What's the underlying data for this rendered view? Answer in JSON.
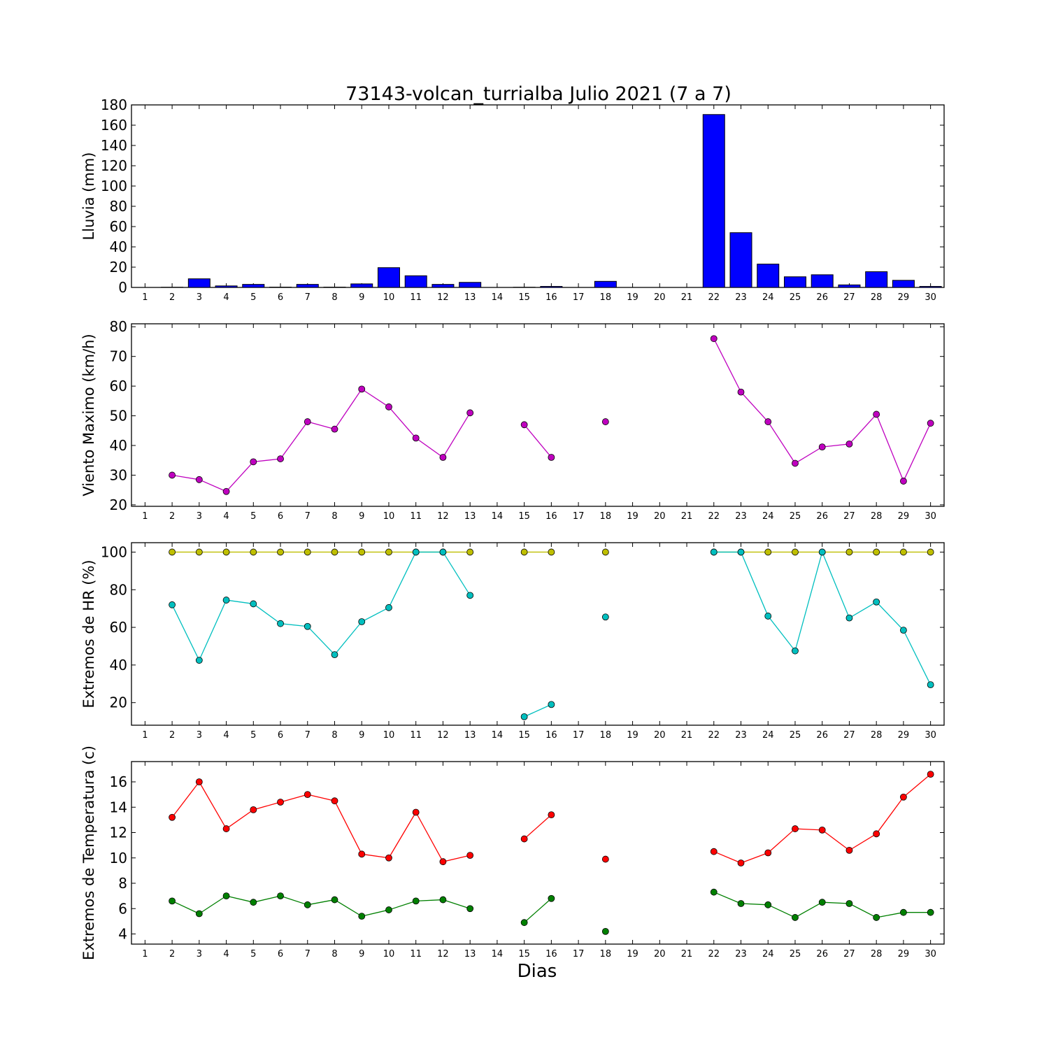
{
  "title": "73143-volcan_turrialba Julio 2021  (7 a 7)",
  "xlabel": "Dias",
  "colors": {
    "rain_bar": "#0000ff",
    "wind": "#bf00bf",
    "hr_max": "#bfbf00",
    "hr_min": "#00bfbf",
    "temp_max": "#ff0000",
    "temp_min": "#008000"
  },
  "chart_data": [
    {
      "type": "bar",
      "ylabel": "Lluvia (mm)",
      "ylim": [
        0,
        180
      ],
      "yticks": [
        0,
        20,
        40,
        60,
        80,
        100,
        120,
        140,
        160,
        180
      ],
      "categories": [
        "1",
        "2",
        "3",
        "4",
        "5",
        "6",
        "7",
        "8",
        "9",
        "10",
        "11",
        "12",
        "13",
        "14",
        "15",
        "16",
        "17",
        "18",
        "19",
        "20",
        "21",
        "22",
        "23",
        "24",
        "25",
        "26",
        "27",
        "28",
        "29",
        "30"
      ],
      "x": [
        1,
        2,
        3,
        4,
        5,
        6,
        7,
        8,
        9,
        10,
        11,
        12,
        13,
        14,
        15,
        16,
        17,
        18,
        19,
        20,
        21,
        22,
        23,
        24,
        25,
        26,
        27,
        28,
        29,
        30
      ],
      "series": [
        {
          "values": [
            0,
            0.2,
            8.5,
            1.5,
            3,
            0.3,
            3,
            0.3,
            3.5,
            19.5,
            11.5,
            3,
            5,
            0,
            0.2,
            1,
            0,
            6,
            0,
            0,
            0,
            170.5,
            54,
            23,
            10.5,
            12.5,
            2.5,
            15.5,
            7,
            1
          ],
          "color": "#0000ff"
        }
      ]
    },
    {
      "type": "line",
      "ylabel": "Viento Maximo (km/h)",
      "ylim": [
        19.5,
        81
      ],
      "yticks": [
        20,
        30,
        40,
        50,
        60,
        70,
        80
      ],
      "categories": [
        "1",
        "2",
        "3",
        "4",
        "5",
        "6",
        "7",
        "8",
        "9",
        "10",
        "11",
        "12",
        "13",
        "14",
        "15",
        "16",
        "17",
        "18",
        "19",
        "20",
        "21",
        "22",
        "23",
        "24",
        "25",
        "26",
        "27",
        "28",
        "29",
        "30"
      ],
      "x": [
        1,
        2,
        3,
        4,
        5,
        6,
        7,
        8,
        9,
        10,
        11,
        12,
        13,
        14,
        15,
        16,
        17,
        18,
        19,
        20,
        21,
        22,
        23,
        24,
        25,
        26,
        27,
        28,
        29,
        30
      ],
      "series": [
        {
          "values": [
            null,
            30,
            28.5,
            24.5,
            34.5,
            35.5,
            48,
            45.5,
            59,
            53,
            42.5,
            36,
            51,
            null,
            47,
            36,
            null,
            48,
            null,
            null,
            null,
            76,
            58,
            48,
            34,
            39.5,
            40.5,
            50.5,
            28,
            47.5
          ],
          "color": "#bf00bf"
        }
      ]
    },
    {
      "type": "line",
      "ylabel": "Extremos de HR (%)",
      "ylim": [
        8,
        105
      ],
      "yticks": [
        20,
        40,
        60,
        80,
        100
      ],
      "categories": [
        "1",
        "2",
        "3",
        "4",
        "5",
        "6",
        "7",
        "8",
        "9",
        "10",
        "11",
        "12",
        "13",
        "14",
        "15",
        "16",
        "17",
        "18",
        "19",
        "20",
        "21",
        "22",
        "23",
        "24",
        "25",
        "26",
        "27",
        "28",
        "29",
        "30"
      ],
      "x": [
        1,
        2,
        3,
        4,
        5,
        6,
        7,
        8,
        9,
        10,
        11,
        12,
        13,
        14,
        15,
        16,
        17,
        18,
        19,
        20,
        21,
        22,
        23,
        24,
        25,
        26,
        27,
        28,
        29,
        30
      ],
      "series": [
        {
          "values": [
            null,
            100,
            100,
            100,
            100,
            100,
            100,
            100,
            100,
            100,
            100,
            100,
            100,
            null,
            100,
            100,
            null,
            100,
            null,
            null,
            null,
            100,
            100,
            100,
            100,
            100,
            100,
            100,
            100,
            100
          ],
          "color": "#bfbf00"
        },
        {
          "values": [
            null,
            72,
            42.5,
            74.5,
            72.5,
            62,
            60.5,
            45.5,
            63,
            70.5,
            100,
            100,
            77,
            null,
            12.5,
            19,
            null,
            65.5,
            null,
            null,
            null,
            100,
            100,
            66,
            47.5,
            100,
            65,
            73.5,
            58.5,
            29.5
          ],
          "color": "#00bfbf"
        }
      ]
    },
    {
      "type": "line",
      "ylabel": "Extremos de Temperatura (c)",
      "ylim": [
        3.2,
        17.6
      ],
      "yticks": [
        4,
        6,
        8,
        10,
        12,
        14,
        16
      ],
      "categories": [
        "1",
        "2",
        "3",
        "4",
        "5",
        "6",
        "7",
        "8",
        "9",
        "10",
        "11",
        "12",
        "13",
        "14",
        "15",
        "16",
        "17",
        "18",
        "19",
        "20",
        "21",
        "22",
        "23",
        "24",
        "25",
        "26",
        "27",
        "28",
        "29",
        "30"
      ],
      "x": [
        1,
        2,
        3,
        4,
        5,
        6,
        7,
        8,
        9,
        10,
        11,
        12,
        13,
        14,
        15,
        16,
        17,
        18,
        19,
        20,
        21,
        22,
        23,
        24,
        25,
        26,
        27,
        28,
        29,
        30
      ],
      "series": [
        {
          "values": [
            null,
            13.2,
            16,
            12.3,
            13.8,
            14.4,
            15,
            14.5,
            10.3,
            10,
            13.6,
            9.7,
            10.2,
            null,
            11.5,
            13.4,
            null,
            9.9,
            null,
            null,
            null,
            10.5,
            9.6,
            10.4,
            12.3,
            12.2,
            10.6,
            11.9,
            14.8,
            16.6
          ],
          "color": "#ff0000"
        },
        {
          "values": [
            null,
            6.6,
            5.6,
            7,
            6.5,
            7,
            6.3,
            6.7,
            5.4,
            5.9,
            6.6,
            6.7,
            6,
            null,
            4.9,
            6.8,
            null,
            4.2,
            null,
            null,
            null,
            7.3,
            6.4,
            6.3,
            5.3,
            6.5,
            6.4,
            5.3,
            5.7,
            5.7
          ],
          "color": "#008000"
        }
      ]
    }
  ]
}
